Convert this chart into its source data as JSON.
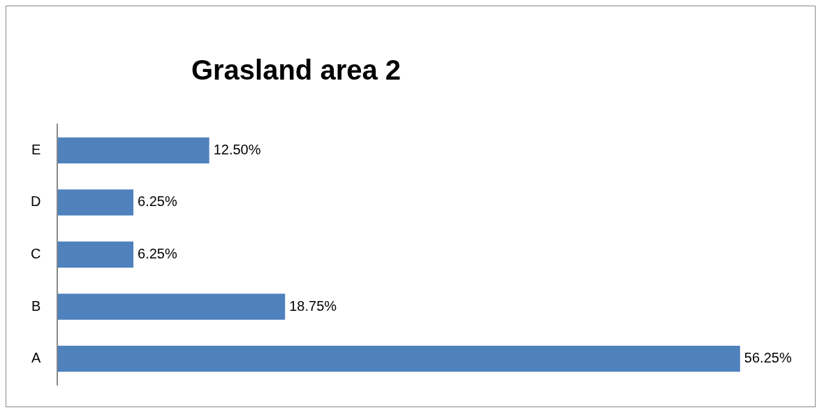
{
  "chart_data": {
    "type": "bar",
    "orientation": "horizontal",
    "title": "Grasland area 2",
    "categories": [
      "E",
      "D",
      "C",
      "B",
      "A"
    ],
    "values": [
      12.5,
      6.25,
      6.25,
      18.75,
      56.25
    ],
    "value_labels": [
      "12.50%",
      "6.25%",
      "6.25%",
      "18.75%",
      "56.25%"
    ],
    "color": "#4f81bd",
    "tick_labels": "y"
  }
}
